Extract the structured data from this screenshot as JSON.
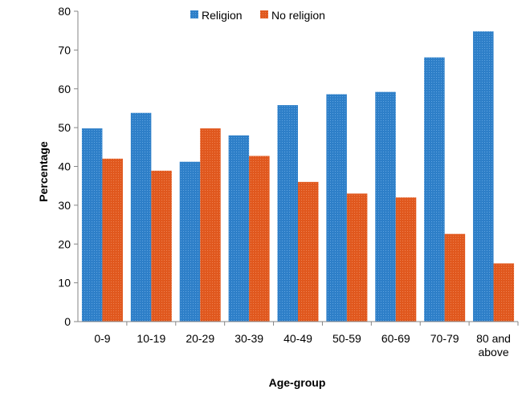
{
  "chart_data": {
    "type": "bar",
    "title": "",
    "xlabel": "Age-group",
    "ylabel": "Percentage",
    "ylim": [
      0,
      80
    ],
    "yticks": [
      0,
      10,
      20,
      30,
      40,
      50,
      60,
      70,
      80
    ],
    "grid": false,
    "legend_position": "top-center",
    "categories": [
      "0-9",
      "10-19",
      "20-29",
      "30-39",
      "40-49",
      "50-59",
      "60-69",
      "70-79",
      "80 and above"
    ],
    "category_lines": [
      [
        "0-9"
      ],
      [
        "10-19"
      ],
      [
        "20-29"
      ],
      [
        "30-39"
      ],
      [
        "40-49"
      ],
      [
        "50-59"
      ],
      [
        "60-69"
      ],
      [
        "70-79"
      ],
      [
        "80 and",
        "above"
      ]
    ],
    "series": [
      {
        "name": "Religion",
        "color": "#2e7fc8",
        "values": [
          49.8,
          53.8,
          41.2,
          48.0,
          55.8,
          58.6,
          59.2,
          68.1,
          74.8
        ]
      },
      {
        "name": "No religion",
        "color": "#e0581e",
        "values": [
          42.0,
          38.9,
          49.8,
          42.7,
          36.0,
          33.0,
          32.0,
          22.6,
          15.0
        ]
      }
    ]
  }
}
